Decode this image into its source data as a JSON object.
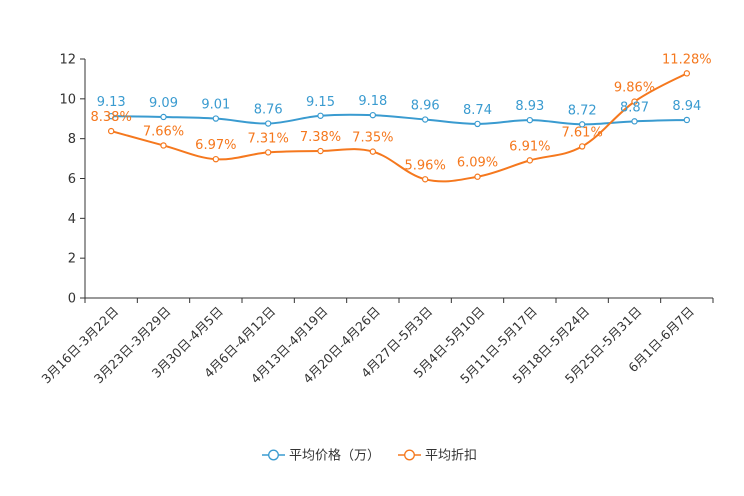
{
  "chart_data": {
    "type": "line",
    "title": "",
    "xlabel": "",
    "ylabel": "",
    "ylim": [
      0,
      12
    ],
    "yticks": [
      0,
      2,
      4,
      6,
      8,
      10,
      12
    ],
    "grid": false,
    "legend_position": "bottom-center",
    "categories": [
      "3月16日-3月22日",
      "3月23日-3月29日",
      "3月30日-4月5日",
      "4月6日-4月12日",
      "4月13日-4月19日",
      "4月20日-4月26日",
      "4月27日-5月3日",
      "5月4日-5月10日",
      "5月11日-5月17日",
      "5月18日-5月24日",
      "5月25日-5月31日",
      "6月1日-6月7日"
    ],
    "series": [
      {
        "name": "平均价格（万）",
        "color": "#3a9bd0",
        "values": [
          9.13,
          9.09,
          9.01,
          8.76,
          9.15,
          9.18,
          8.96,
          8.74,
          8.93,
          8.72,
          8.87,
          8.94
        ],
        "labels": [
          "9.13",
          "9.09",
          "9.01",
          "8.76",
          "9.15",
          "9.18",
          "8.96",
          "8.74",
          "8.93",
          "8.72",
          "8.87",
          "8.94"
        ]
      },
      {
        "name": "平均折扣",
        "color": "#f5781e",
        "values": [
          8.38,
          7.66,
          6.97,
          7.31,
          7.38,
          7.35,
          5.96,
          6.09,
          6.91,
          7.61,
          9.86,
          11.28
        ],
        "labels": [
          "8.38%",
          "7.66%",
          "6.97%",
          "7.31%",
          "7.38%",
          "7.35%",
          "5.96%",
          "6.09%",
          "6.91%",
          "7.61%",
          "9.86%",
          "11.28%"
        ]
      }
    ]
  }
}
